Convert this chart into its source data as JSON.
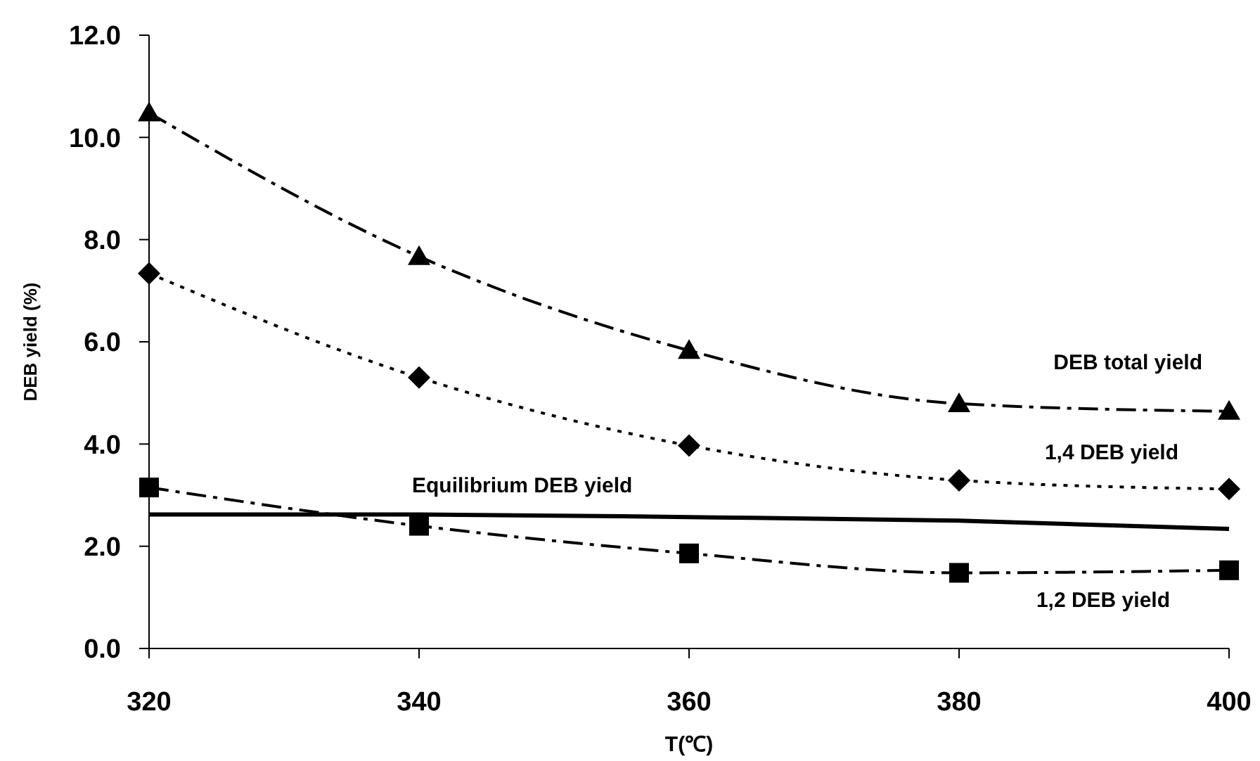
{
  "chart_data": {
    "type": "line",
    "xlabel": "T(℃)",
    "ylabel": "DEB yield (%)",
    "x": [
      320,
      340,
      360,
      380,
      400
    ],
    "xlim": [
      320,
      400
    ],
    "xticks": [
      320,
      340,
      360,
      380,
      400
    ],
    "ylim": [
      0,
      12
    ],
    "yticks": [
      {
        "value": 0,
        "label": "0.0"
      },
      {
        "value": 2,
        "label": "2.0"
      },
      {
        "value": 4,
        "label": "4.0"
      },
      {
        "value": 6,
        "label": "6.0"
      },
      {
        "value": 8,
        "label": "8.0"
      },
      {
        "value": 10,
        "label": "10.0"
      },
      {
        "value": 12,
        "label": "12.0"
      }
    ],
    "grid": false,
    "series": [
      {
        "name": "DEB total yield",
        "color": "#000000",
        "marker": "triangle",
        "line_style": "dashed",
        "values": [
          10.48,
          7.67,
          5.83,
          4.79,
          4.64
        ]
      },
      {
        "name": "1,4 DEB yield",
        "color": "#000000",
        "marker": "diamond",
        "line_style": "dotted",
        "values": [
          7.34,
          5.3,
          3.97,
          3.29,
          3.12
        ]
      },
      {
        "name": "1,2 DEB yield",
        "color": "#000000",
        "marker": "square",
        "line_style": "dashed",
        "values": [
          3.15,
          2.4,
          1.86,
          1.48,
          1.53
        ]
      },
      {
        "name": "Equilibrium DEB yield",
        "color": "#000000",
        "marker": "none",
        "line_style": "solid",
        "values": [
          2.62,
          2.62,
          2.57,
          2.5,
          2.34
        ]
      }
    ]
  }
}
